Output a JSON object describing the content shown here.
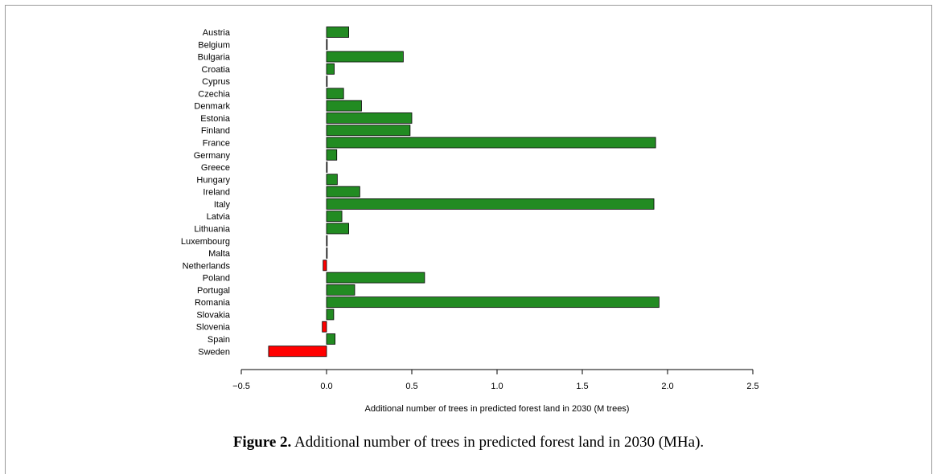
{
  "chart_data": {
    "type": "bar",
    "orientation": "horizontal",
    "categories": [
      "Austria",
      "Belgium",
      "Bulgaria",
      "Croatia",
      "Cyprus",
      "Czechia",
      "Denmark",
      "Estonia",
      "Finland",
      "France",
      "Germany",
      "Greece",
      "Hungary",
      "Ireland",
      "Italy",
      "Latvia",
      "Lithuania",
      "Luxembourg",
      "Malta",
      "Netherlands",
      "Poland",
      "Portugal",
      "Romania",
      "Slovakia",
      "Slovenia",
      "Spain",
      "Sweden"
    ],
    "values": [
      0.13,
      0.003,
      0.45,
      0.045,
      0.002,
      0.1,
      0.205,
      0.5,
      0.49,
      1.93,
      0.06,
      0.002,
      0.063,
      0.195,
      1.92,
      0.09,
      0.13,
      0.002,
      0.002,
      -0.02,
      0.575,
      0.165,
      1.95,
      0.042,
      -0.025,
      0.05,
      -0.34
    ],
    "xlabel": "Additional number of trees in predicted forest land in 2030 (M trees)",
    "ylabel": "",
    "xlim": [
      -0.5,
      2.5
    ],
    "xticks": [
      -0.5,
      0.0,
      0.5,
      1.0,
      1.5,
      2.0,
      2.5
    ],
    "xtick_labels": [
      "−0.5",
      "0.0",
      "0.5",
      "1.0",
      "1.5",
      "2.0",
      "2.5"
    ],
    "colors": {
      "positive": "#228b22",
      "negative": "#ff0000",
      "outline": "#000000"
    },
    "grid": false
  },
  "caption": {
    "label": "Figure 2.",
    "text": " Additional number of trees in predicted forest land in 2030 (MHa)."
  }
}
